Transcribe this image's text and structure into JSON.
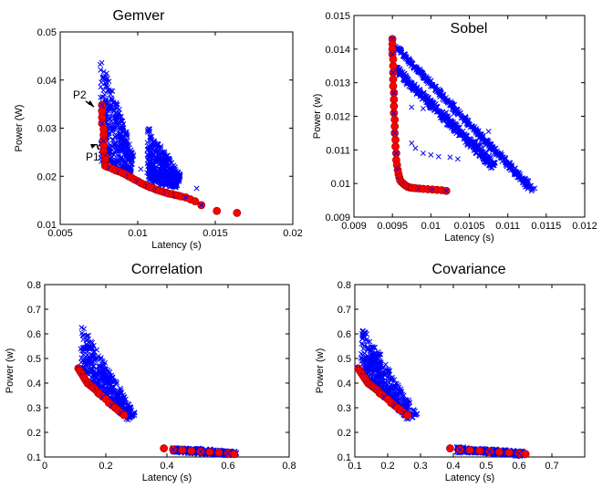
{
  "colors": {
    "explored": "#0000ff",
    "pareto": "#ff0000"
  },
  "chart_data": [
    {
      "type": "scatter",
      "title": "Gemver",
      "xlabel": "Latency (s)",
      "ylabel": "Power (W)",
      "xlim": [
        0.005,
        0.02
      ],
      "ylim": [
        0.01,
        0.05
      ],
      "xticks": [
        "0.005",
        "0.01",
        "0.015",
        "0.02"
      ],
      "yticks": [
        "0.01",
        "0.02",
        "0.03",
        "0.04",
        "0.05"
      ],
      "annotations": [
        {
          "text": "P2",
          "x": 0.0077,
          "y": 0.034
        },
        {
          "text": "P1",
          "x": 0.0077,
          "y": 0.0228
        }
      ],
      "explored_clusters": [
        {
          "top_left": [
            0.0076,
            0.045
          ],
          "top_right": [
            0.0098,
            0.024
          ],
          "bottom_right": [
            0.0095,
            0.02
          ],
          "bottom_left": [
            0.0076,
            0.022
          ]
        },
        {
          "top_left": [
            0.0106,
            0.0305
          ],
          "top_right": [
            0.0128,
            0.02
          ],
          "bottom_right": [
            0.0125,
            0.0175
          ],
          "bottom_left": [
            0.0106,
            0.019
          ]
        }
      ],
      "explored_outliers": [
        [
          0.0127,
          0.0203
        ],
        [
          0.0138,
          0.0175
        ],
        [
          0.0115,
          0.0185
        ],
        [
          0.0102,
          0.0215
        ]
      ],
      "pareto_x": [
        0.0077,
        0.0077,
        0.0077,
        0.0077,
        0.0078,
        0.0078,
        0.0078,
        0.0078,
        0.0078,
        0.0079,
        0.0079,
        0.0079,
        0.0079,
        0.0079,
        0.008,
        0.0082,
        0.0084,
        0.0086,
        0.0088,
        0.009,
        0.0092,
        0.0094,
        0.0096,
        0.0098,
        0.01,
        0.0102,
        0.0104,
        0.0106,
        0.0108,
        0.011,
        0.0112,
        0.0114,
        0.0116,
        0.0118,
        0.012,
        0.0122,
        0.0124,
        0.0126,
        0.0128,
        0.0131,
        0.0134,
        0.0137,
        0.0141,
        0.0151,
        0.0164
      ],
      "pareto_y": [
        0.0348,
        0.0335,
        0.0322,
        0.031,
        0.0298,
        0.0286,
        0.0274,
        0.0263,
        0.0252,
        0.0242,
        0.0234,
        0.0228,
        0.0225,
        0.0222,
        0.022,
        0.0218,
        0.0215,
        0.0212,
        0.021,
        0.0207,
        0.0204,
        0.02,
        0.0197,
        0.0193,
        0.019,
        0.0186,
        0.0183,
        0.018,
        0.0177,
        0.0175,
        0.0172,
        0.017,
        0.0168,
        0.0166,
        0.0164,
        0.0163,
        0.0161,
        0.016,
        0.0158,
        0.0156,
        0.0152,
        0.0148,
        0.014,
        0.0128,
        0.0124
      ]
    },
    {
      "type": "scatter",
      "title": "Sobel",
      "xlabel": "Latency (s)",
      "ylabel": "Power (w)",
      "xlim": [
        0.009,
        0.012
      ],
      "ylim": [
        0.009,
        0.015
      ],
      "xticks": [
        "0.009",
        "0.0095",
        "0.01",
        "0.0105",
        "0.011",
        "0.0115",
        "0.012"
      ],
      "yticks": [
        "0.009",
        "0.01",
        "0.011",
        "0.012",
        "0.013",
        "0.014",
        "0.015"
      ],
      "explored_clusters": [
        {
          "top_left": [
            0.00955,
            0.0141
          ],
          "top_right": [
            0.01135,
            0.00985
          ],
          "bottom_right": [
            0.0113,
            0.00975
          ],
          "bottom_left": [
            0.00955,
            0.014
          ]
        },
        {
          "top_left": [
            0.00955,
            0.0135
          ],
          "top_right": [
            0.01085,
            0.0106
          ],
          "bottom_right": [
            0.0108,
            0.0104
          ],
          "bottom_left": [
            0.00955,
            0.0133
          ]
        }
      ],
      "explored_outliers": [
        [
          0.00975,
          0.01227
        ],
        [
          0.0099,
          0.01223
        ],
        [
          0.01005,
          0.01218
        ],
        [
          0.0102,
          0.01212
        ],
        [
          0.0103,
          0.01208
        ],
        [
          0.00975,
          0.0112
        ],
        [
          0.0098,
          0.01105
        ],
        [
          0.0099,
          0.0109
        ],
        [
          0.01,
          0.01085
        ],
        [
          0.0101,
          0.0108
        ],
        [
          0.01025,
          0.01078
        ],
        [
          0.01035,
          0.01073
        ],
        [
          0.01075,
          0.01155
        ],
        [
          0.01065,
          0.01115
        ],
        [
          0.0108,
          0.01055
        ]
      ],
      "pareto_x": [
        0.0095,
        0.0095,
        0.0095,
        0.0095,
        0.00951,
        0.00951,
        0.00951,
        0.00951,
        0.00951,
        0.00952,
        0.00952,
        0.00952,
        0.00952,
        0.00953,
        0.00953,
        0.00953,
        0.00954,
        0.00954,
        0.00955,
        0.00955,
        0.00956,
        0.00957,
        0.00958,
        0.00959,
        0.0096,
        0.00962,
        0.00964,
        0.00966,
        0.00968,
        0.0097,
        0.00973,
        0.00976,
        0.0098,
        0.00985,
        0.0099,
        0.00996,
        0.01002,
        0.01008,
        0.01014,
        0.0102
      ],
      "pareto_y": [
        0.0143,
        0.01415,
        0.014,
        0.01385,
        0.0137,
        0.0135,
        0.0133,
        0.0131,
        0.0129,
        0.0127,
        0.0125,
        0.0123,
        0.0121,
        0.0119,
        0.0117,
        0.0115,
        0.0113,
        0.0111,
        0.0109,
        0.0107,
        0.01055,
        0.0104,
        0.01028,
        0.01018,
        0.0101,
        0.01004,
        0.01,
        0.00996,
        0.00993,
        0.0099,
        0.00988,
        0.00987,
        0.00986,
        0.00985,
        0.00984,
        0.00983,
        0.00982,
        0.00981,
        0.0098,
        0.00978
      ]
    },
    {
      "type": "scatter",
      "title": "Correlation",
      "xlabel": "Latency (s)",
      "ylabel": "Power (w)",
      "xlim": [
        0,
        0.8
      ],
      "ylim": [
        0.1,
        0.8
      ],
      "xticks": [
        "0",
        "0.2",
        "0.4",
        "0.6",
        "0.8"
      ],
      "yticks": [
        "0.1",
        "0.2",
        "0.3",
        "0.4",
        "0.5",
        "0.6",
        "0.7",
        "0.8"
      ],
      "explored_clusters": [
        {
          "top_left": [
            0.12,
            0.635
          ],
          "top_right": [
            0.3,
            0.27
          ],
          "bottom_right": [
            0.27,
            0.25
          ],
          "bottom_left": [
            0.12,
            0.45
          ]
        },
        {
          "top_left": [
            0.42,
            0.14
          ],
          "top_right": [
            0.63,
            0.12
          ],
          "bottom_right": [
            0.62,
            0.105
          ],
          "bottom_left": [
            0.42,
            0.12
          ]
        }
      ],
      "explored_outliers": [],
      "pareto_x": [
        0.11,
        0.115,
        0.12,
        0.125,
        0.13,
        0.135,
        0.14,
        0.145,
        0.15,
        0.155,
        0.16,
        0.165,
        0.17,
        0.175,
        0.18,
        0.19,
        0.2,
        0.21,
        0.22,
        0.23,
        0.24,
        0.25,
        0.26,
        0.39,
        0.42,
        0.45,
        0.48,
        0.51,
        0.54,
        0.57,
        0.6,
        0.62
      ],
      "pareto_y": [
        0.46,
        0.45,
        0.44,
        0.43,
        0.42,
        0.41,
        0.4,
        0.395,
        0.39,
        0.385,
        0.38,
        0.375,
        0.37,
        0.36,
        0.355,
        0.345,
        0.335,
        0.32,
        0.31,
        0.3,
        0.29,
        0.28,
        0.27,
        0.135,
        0.13,
        0.128,
        0.125,
        0.122,
        0.12,
        0.118,
        0.115,
        0.112
      ]
    },
    {
      "type": "scatter",
      "title": "Covariance",
      "xlabel": "Latency (s)",
      "ylabel": "Power (w)",
      "xlim": [
        0.1,
        0.8
      ],
      "ylim": [
        0.1,
        0.8
      ],
      "xticks": [
        "0.1",
        "0.2",
        "0.3",
        "0.4",
        "0.5",
        "0.6",
        "0.7"
      ],
      "yticks": [
        "0.1",
        "0.2",
        "0.3",
        "0.4",
        "0.5",
        "0.6",
        "0.7",
        "0.8"
      ],
      "explored_clusters": [
        {
          "top_left": [
            0.12,
            0.635
          ],
          "top_right": [
            0.29,
            0.27
          ],
          "bottom_right": [
            0.26,
            0.25
          ],
          "bottom_left": [
            0.12,
            0.45
          ]
        },
        {
          "top_left": [
            0.41,
            0.14
          ],
          "top_right": [
            0.62,
            0.12
          ],
          "bottom_right": [
            0.61,
            0.105
          ],
          "bottom_left": [
            0.41,
            0.12
          ]
        }
      ],
      "explored_outliers": [],
      "pareto_x": [
        0.11,
        0.115,
        0.12,
        0.125,
        0.13,
        0.135,
        0.14,
        0.145,
        0.15,
        0.155,
        0.16,
        0.165,
        0.17,
        0.175,
        0.18,
        0.19,
        0.2,
        0.21,
        0.22,
        0.23,
        0.24,
        0.25,
        0.26,
        0.39,
        0.42,
        0.45,
        0.48,
        0.51,
        0.54,
        0.57,
        0.6,
        0.62
      ],
      "pareto_y": [
        0.46,
        0.45,
        0.44,
        0.43,
        0.42,
        0.41,
        0.4,
        0.395,
        0.39,
        0.385,
        0.38,
        0.375,
        0.37,
        0.36,
        0.355,
        0.345,
        0.335,
        0.32,
        0.31,
        0.3,
        0.29,
        0.28,
        0.27,
        0.135,
        0.13,
        0.128,
        0.125,
        0.122,
        0.12,
        0.118,
        0.115,
        0.112
      ]
    }
  ]
}
